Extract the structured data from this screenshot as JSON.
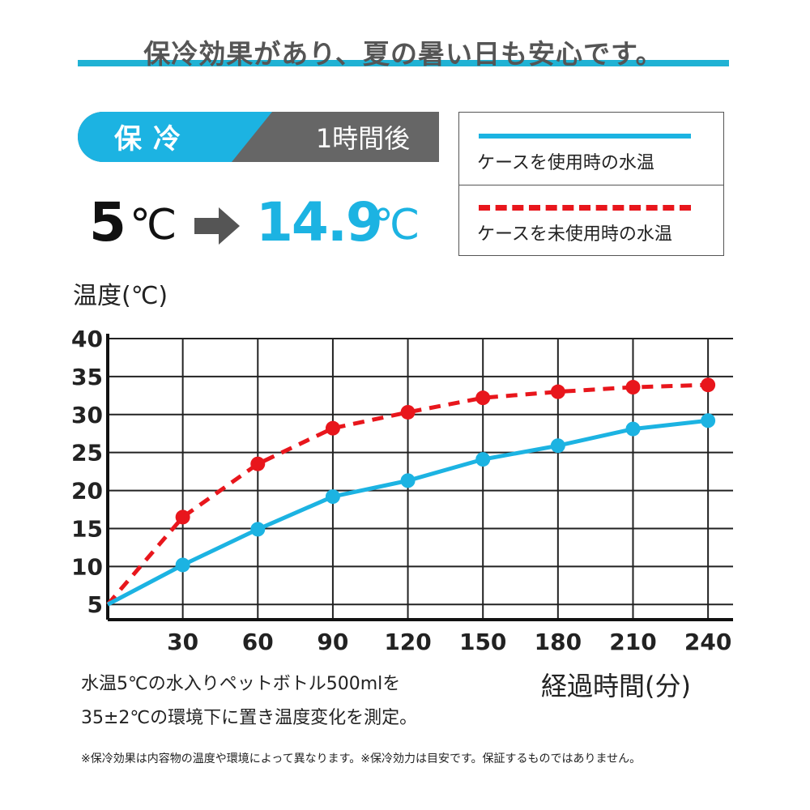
{
  "headline": "保冷効果があり、夏の暑い日も安心です。",
  "badge": {
    "left": "保冷",
    "right": "1時間後"
  },
  "temperature": {
    "from_value": "5",
    "from_unit": "℃",
    "to_value": "14.9",
    "to_unit": "℃"
  },
  "legend": {
    "with_case": "ケースを使用時の水温",
    "without_case": "ケースを未使用時の水温"
  },
  "notes": {
    "line1": "水温5℃の水入りペットボトル500mlを",
    "line2": "35±2℃の環境下に置き温度変化を測定。"
  },
  "footnote": "※保冷効果は内容物の温度や環境によって異なります。※保冷効力は目安です。保証するものではありません。",
  "colors": {
    "accent_blue": "#1cb3e2",
    "accent_red": "#e8161c",
    "badge_gray": "#666666",
    "headline_bar": "#20b2d4"
  },
  "chart_data": {
    "type": "line",
    "ylabel": "温度(℃)",
    "xlabel": "経過時間(分)",
    "x": [
      0,
      30,
      60,
      90,
      120,
      150,
      180,
      210,
      240
    ],
    "xticks": [
      "30",
      "60",
      "90",
      "120",
      "150",
      "180",
      "210",
      "240"
    ],
    "yticks": [
      "5",
      "10",
      "15",
      "20",
      "25",
      "30",
      "35",
      "40"
    ],
    "ylim": [
      3,
      40
    ],
    "xlim": [
      0,
      250
    ],
    "grid": true,
    "legend_position": "top-right",
    "series": [
      {
        "name": "ケースを使用時の水温",
        "color": "#1cb3e2",
        "style": "solid",
        "values": [
          5,
          10.2,
          14.9,
          19.2,
          21.3,
          24.1,
          25.9,
          28.1,
          29.2
        ]
      },
      {
        "name": "ケースを未使用時の水温",
        "color": "#e8161c",
        "style": "dashed",
        "values": [
          5,
          16.5,
          23.5,
          28.2,
          30.3,
          32.2,
          33.0,
          33.6,
          33.9
        ]
      }
    ]
  }
}
